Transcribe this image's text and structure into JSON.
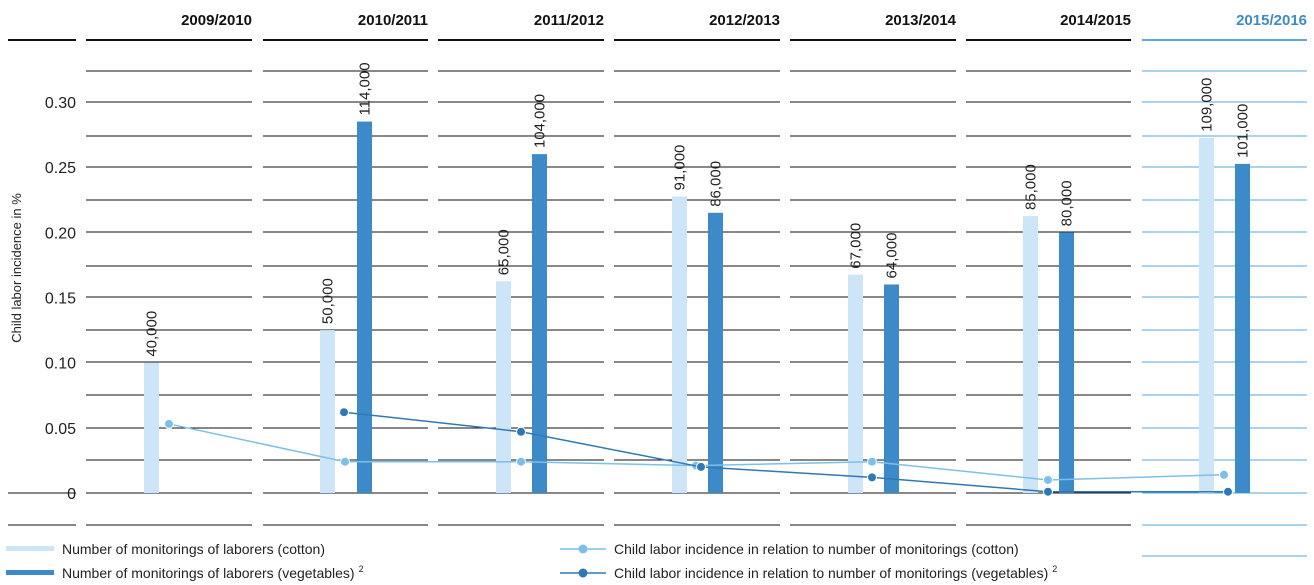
{
  "chart_data": {
    "type": "bar",
    "ylabel": "Child labor incidence in %",
    "ylim": [
      0,
      0.3
    ],
    "y_ticks": [
      "0",
      "0.05",
      "0.10",
      "0.15",
      "0.20",
      "0.25",
      "0.30"
    ],
    "y_tick_values": [
      0,
      0.05,
      0.1,
      0.15,
      0.2,
      0.25,
      0.3
    ],
    "categories": [
      "2009/2010",
      "2010/2011",
      "2011/2012",
      "2012/2013",
      "2013/2014",
      "2014/2015",
      "2015/2016"
    ],
    "highlight_category": "2015/2016",
    "bar_series": [
      {
        "name": "Number of monitorings of laborers (cotton)",
        "values": [
          40000,
          50000,
          65000,
          91000,
          67000,
          85000,
          109000
        ],
        "labels": [
          "40,000",
          "50,000",
          "65,000",
          "91,000",
          "67,000",
          "85,000",
          "109,000"
        ],
        "color": "#cde6f7"
      },
      {
        "name": "Number of monitorings of laborers (vegetables)",
        "name_sup": "2",
        "values": [
          null,
          114000,
          104000,
          86000,
          64000,
          80000,
          101000
        ],
        "labels": [
          "",
          "114,000",
          "104,000",
          "86,000",
          "64,000",
          "80,000",
          "101,000"
        ],
        "color": "#3d8ac8"
      }
    ],
    "line_series": [
      {
        "name": "Child labor incidence in relation to number of monitorings (cotton)",
        "values": [
          0.053,
          0.024,
          0.024,
          0.021,
          0.024,
          0.01,
          0.014
        ],
        "color": "#7cc0ea"
      },
      {
        "name": "Child labor incidence in relation to number of monitorings (vegetables)",
        "name_sup": "2",
        "values": [
          null,
          0.062,
          0.047,
          0.02,
          0.012,
          0.001,
          0.001
        ],
        "color": "#2f78b5"
      }
    ],
    "legend_position": "bottom"
  }
}
